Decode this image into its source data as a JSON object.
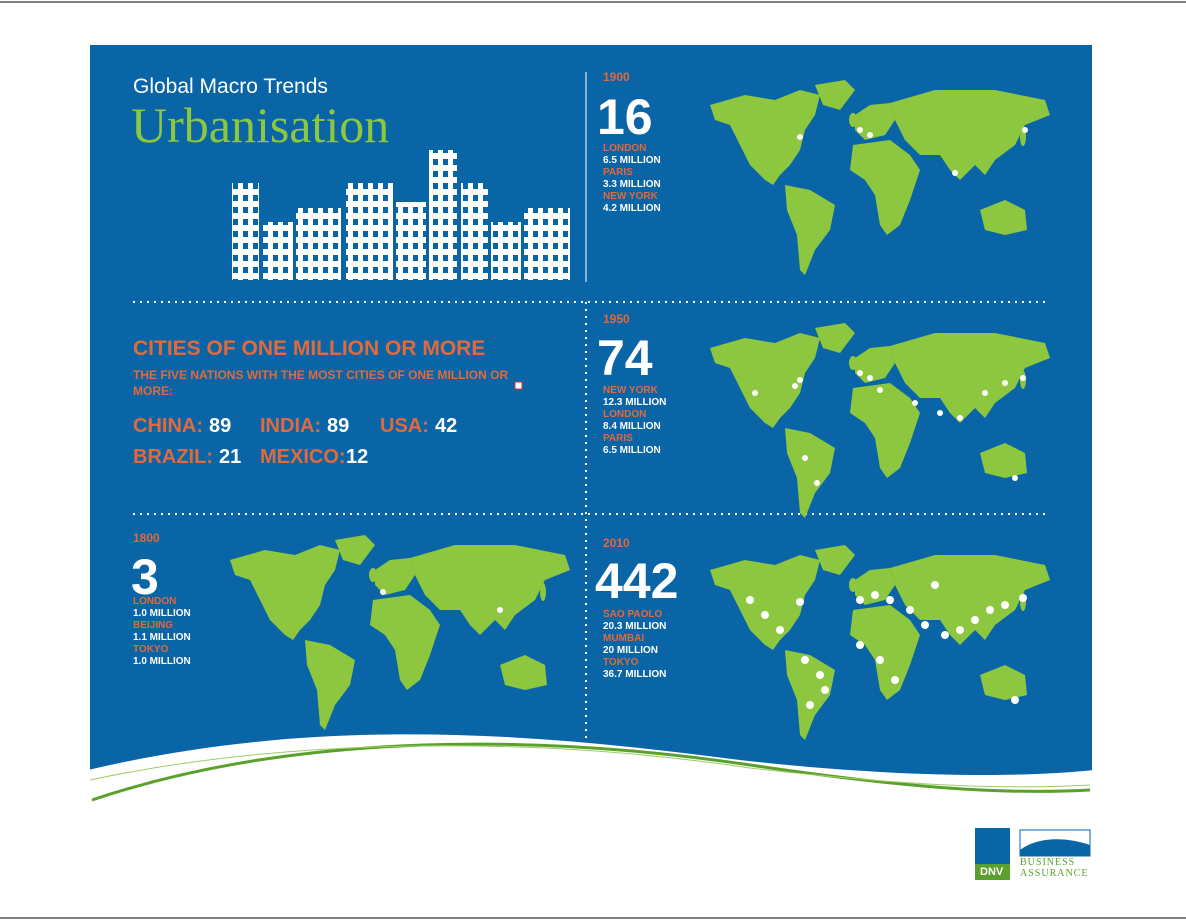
{
  "header": {
    "subtitle": "Global Macro Trends",
    "title": "Urbanisation"
  },
  "panels": [
    {
      "year": "1900",
      "count": 16,
      "cities": [
        {
          "name": "LONDON",
          "population": "6.5 MILLION"
        },
        {
          "name": "PARIS",
          "population": "3.3 MILLION"
        },
        {
          "name": "NEW YORK",
          "population": "4.2 MILLION"
        }
      ]
    },
    {
      "year": "1950",
      "count": 74,
      "cities": [
        {
          "name": "NEW YORK",
          "population": "12.3 MILLION"
        },
        {
          "name": "LONDON",
          "population": "8.4 MILLION"
        },
        {
          "name": "PARIS",
          "population": "6.5 MILLION"
        }
      ]
    },
    {
      "year": "1800",
      "count": 3,
      "cities": [
        {
          "name": "LONDON",
          "population": "1.0 MILLION"
        },
        {
          "name": "BEIJING",
          "population": "1.1 MILLION"
        },
        {
          "name": "TOKYO",
          "population": "1.0 MILLION"
        }
      ]
    },
    {
      "year": "2010",
      "count": 442,
      "cities": [
        {
          "name": "SAO PAOLO",
          "population": "20.3 MILLION"
        },
        {
          "name": "MUMBAI",
          "population": "20 MILLION"
        },
        {
          "name": "TOKYO",
          "population": "36.7 MILLION"
        }
      ]
    }
  ],
  "million_cities": {
    "title": "CITIES OF ONE MILLION OR MORE",
    "subtitle": "THE FIVE NATIONS WITH THE MOST CITIES OF ONE MILLION OR MORE:",
    "nations": [
      {
        "name": "CHINA:",
        "count": 89
      },
      {
        "name": "INDIA:",
        "count": 89
      },
      {
        "name": "USA:",
        "count": 42
      },
      {
        "name": "BRAZIL:",
        "count": 21
      },
      {
        "name": "MEXICO:",
        "count": 12
      }
    ]
  },
  "footer": {
    "logo": "DNV",
    "brand_line1": "BUSINESS",
    "brand_line2": "ASSURANCE"
  }
}
